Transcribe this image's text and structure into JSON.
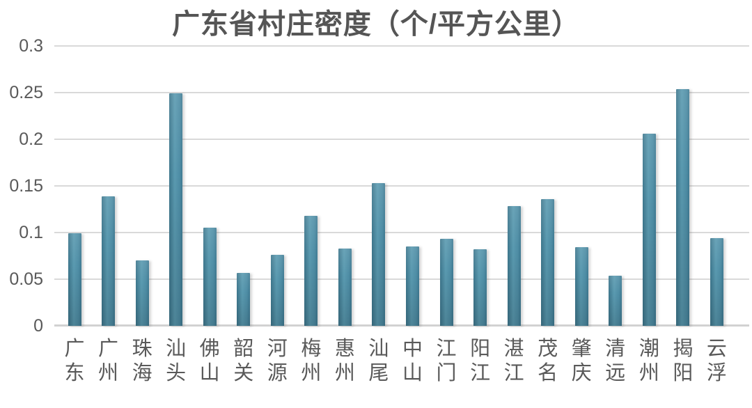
{
  "title": "广东省村庄密度（个/平方公里）",
  "colors": {
    "background": "#ffffff",
    "title_text": "#555555",
    "axis_text": "#595959",
    "gridline": "#d9d9d9",
    "axis_line": "#d2d2d2",
    "bar_center": "#5596ad",
    "bar_edge": "#3d768c",
    "bar_bottom": "#407593"
  },
  "chart_data": {
    "type": "bar",
    "title": "广东省村庄密度（个/平方公里）",
    "xlabel": "",
    "ylabel": "",
    "categories": [
      "广东",
      "广州",
      "珠海",
      "汕头",
      "佛山",
      "韶关",
      "河源",
      "梅州",
      "惠州",
      "汕尾",
      "中山",
      "江门",
      "阳江",
      "湛江",
      "茂名",
      "肇庆",
      "清远",
      "潮州",
      "揭阳",
      "云浮"
    ],
    "values": [
      0.099,
      0.139,
      0.07,
      0.249,
      0.105,
      0.057,
      0.076,
      0.118,
      0.083,
      0.153,
      0.085,
      0.093,
      0.082,
      0.128,
      0.136,
      0.084,
      0.054,
      0.206,
      0.254,
      0.094
    ],
    "ylim": [
      0,
      0.3
    ],
    "yticks": [
      0,
      0.05,
      0.1,
      0.15,
      0.2,
      0.25,
      0.3
    ],
    "ytick_labels": [
      "0",
      "0.05",
      "0.1",
      "0.15",
      "0.2",
      "0.25",
      "0.3"
    ],
    "grid": true,
    "legend_position": "none",
    "x_label_orientation": "vertical-stacked"
  }
}
